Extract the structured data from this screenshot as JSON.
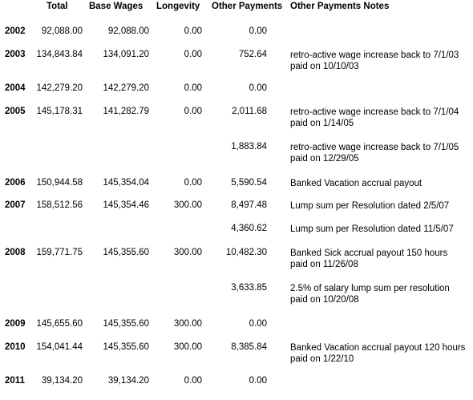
{
  "headers": {
    "total": "Total",
    "base_wages": "Base Wages",
    "longevity": "Longevity",
    "other_payments": "Other Payments",
    "notes": "Other Payments Notes"
  },
  "rows": [
    {
      "year": "2002",
      "total": "92,088.00",
      "base": "92,088.00",
      "longevity": "0.00",
      "other": "0.00",
      "note1": "",
      "note2": ""
    },
    {
      "year": "2003",
      "total": "134,843.84",
      "base": "134,091.20",
      "longevity": "0.00",
      "other": "752.64",
      "note1": "retro-active wage increase back to 7/1/03",
      "note2": "paid on 10/10/03"
    },
    {
      "year": "2004",
      "total": "142,279.20",
      "base": "142,279.20",
      "longevity": "0.00",
      "other": "0.00",
      "note1": "",
      "note2": ""
    },
    {
      "year": "2005",
      "total": "145,178.31",
      "base": "141,282.79",
      "longevity": "0.00",
      "other": "2,011.68",
      "note1": "retro-active wage increase back to 7/1/04",
      "note2": "paid on 1/14/05"
    },
    {
      "year": "",
      "total": "",
      "base": "",
      "longevity": "",
      "other": "1,883.84",
      "note1": "retro-active wage increase back to 7/1/05",
      "note2": "paid on 12/29/05"
    },
    {
      "year": "2006",
      "total": "150,944.58",
      "base": "145,354.04",
      "longevity": "0.00",
      "other": "5,590.54",
      "note1": "Banked Vacation accrual payout",
      "note2": ""
    },
    {
      "year": "2007",
      "total": "158,512.56",
      "base": "145,354.46",
      "longevity": "300.00",
      "other": "8,497.48",
      "note1": "Lump sum per Resolution dated 2/5/07",
      "note2": ""
    },
    {
      "year": "",
      "total": "",
      "base": "",
      "longevity": "",
      "other": "4,360.62",
      "note1": "Lump sum per Resolution dated 11/5/07",
      "note2": ""
    },
    {
      "year": "2008",
      "total": "159,771.75",
      "base": "145,355.60",
      "longevity": "300.00",
      "other": "10,482.30",
      "note1": "Banked Sick accrual payout 150 hours",
      "note2": "paid on 11/26/08"
    },
    {
      "year": "",
      "total": "",
      "base": "",
      "longevity": "",
      "other": "3,633.85",
      "note1": "2.5% of salary lump sum per resolution",
      "note2": "paid on 10/20/08"
    },
    {
      "year": "2009",
      "total": "145,655.60",
      "base": "145,355.60",
      "longevity": "300.00",
      "other": "0.00",
      "note1": "",
      "note2": ""
    },
    {
      "year": "2010",
      "total": "154,041.44",
      "base": "145,355.60",
      "longevity": "300.00",
      "other": "8,385.84",
      "note1": "Banked Vacation accrual payout  120 hours",
      "note2": "paid on 1/22/10"
    },
    {
      "year": "2011",
      "total": "39,134.20",
      "base": "39,134.20",
      "longevity": "0.00",
      "other": "0.00",
      "note1": "",
      "note2": ""
    }
  ]
}
